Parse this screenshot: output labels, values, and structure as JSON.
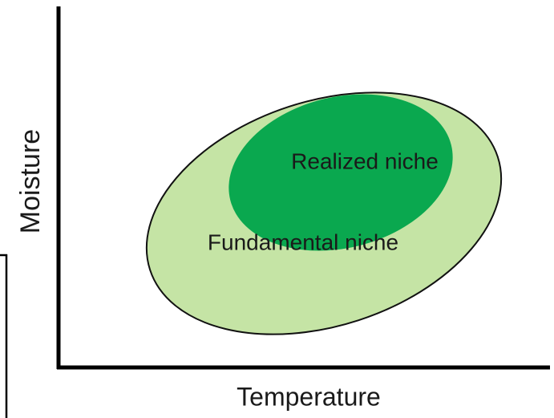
{
  "axes": {
    "y_label": "Moisture",
    "x_label": "Temperature"
  },
  "regions": [
    {
      "label": "Realized niche"
    },
    {
      "label": "Fundamental niche"
    }
  ]
}
